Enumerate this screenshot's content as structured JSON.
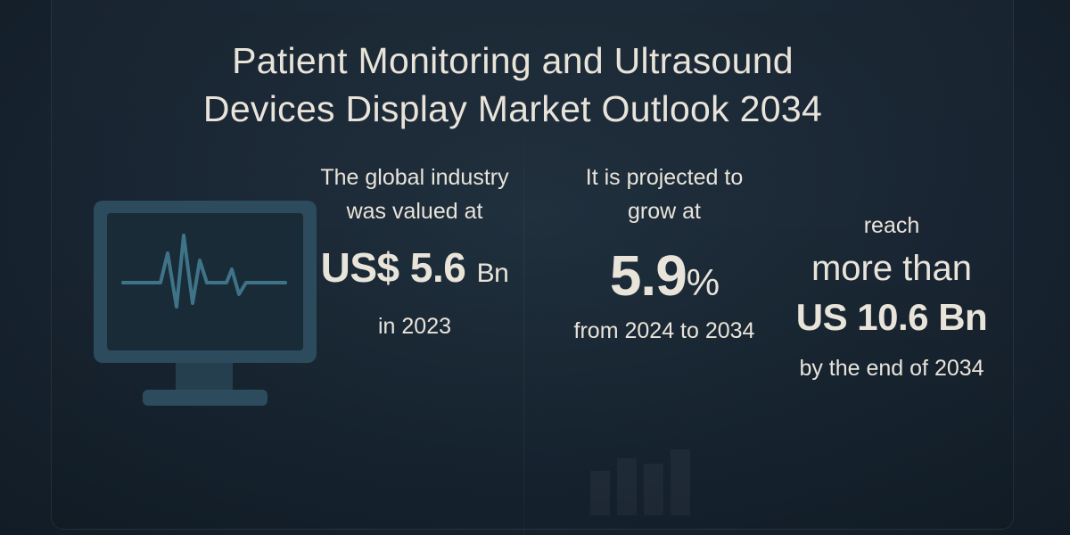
{
  "title": {
    "line1": "Patient Monitoring and Ultrasound",
    "line2": "Devices Display Market Outlook 2034"
  },
  "icons": {
    "monitor": "heartbeat-monitor-icon",
    "bars": "bar-chart-icon"
  },
  "colors": {
    "background": "#172431",
    "text": "#e9e4da",
    "monitor": "#34586c",
    "waveform": "#3f7388"
  },
  "stat_valued": {
    "intro_line1": "The global industry",
    "intro_line2": "was valued at",
    "value": "US$ 5.6",
    "unit": "Bn",
    "period": "in 2023"
  },
  "stat_growth": {
    "intro_line1": "It is projected to",
    "intro_line2": "grow at",
    "value": "5.9",
    "unit": "%",
    "period": "from 2024 to 2034"
  },
  "stat_reach": {
    "intro": "reach",
    "qualifier": "more than",
    "value": "US 10.6 Bn",
    "period": "by the end of 2034"
  }
}
